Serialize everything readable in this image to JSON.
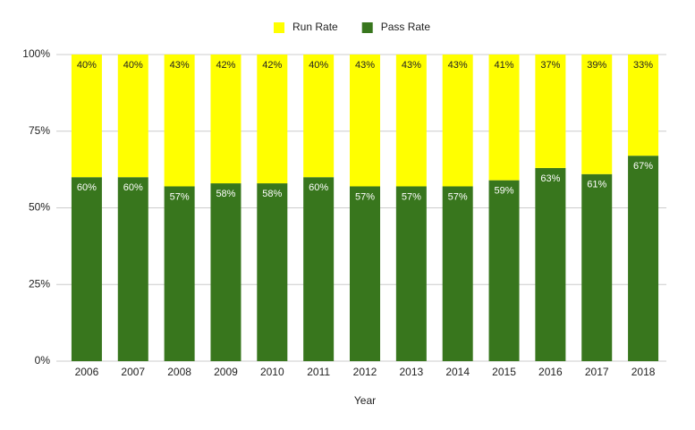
{
  "chart_data": {
    "type": "stacked_bar_percent",
    "x_label": "Year",
    "categories": [
      "2006",
      "2007",
      "2008",
      "2009",
      "2010",
      "2011",
      "2012",
      "2013",
      "2014",
      "2015",
      "2016",
      "2017",
      "2018"
    ],
    "series": [
      {
        "name": "Run Rate",
        "color": "#ffff00",
        "values": [
          40,
          40,
          43,
          42,
          42,
          40,
          43,
          43,
          43,
          41,
          37,
          39,
          33
        ],
        "value_labels": [
          "40%",
          "40%",
          "43%",
          "42%",
          "42%",
          "40%",
          "43%",
          "43%",
          "43%",
          "41%",
          "37%",
          "39%",
          "33%"
        ]
      },
      {
        "name": "Pass Rate",
        "color": "#38761d",
        "values": [
          60,
          60,
          57,
          58,
          58,
          60,
          57,
          57,
          57,
          59,
          63,
          61,
          67
        ],
        "value_labels": [
          "60%",
          "60%",
          "57%",
          "58%",
          "58%",
          "60%",
          "57%",
          "57%",
          "57%",
          "59%",
          "63%",
          "61%",
          "67%"
        ]
      }
    ],
    "ylim": [
      0,
      100
    ],
    "yticks": [
      {
        "value": 0,
        "label": "0%"
      },
      {
        "value": 25,
        "label": "25%"
      },
      {
        "value": 50,
        "label": "50%"
      },
      {
        "value": 75,
        "label": "75%"
      },
      {
        "value": 100,
        "label": "100%"
      }
    ],
    "grid": true,
    "legend_position": "top"
  }
}
